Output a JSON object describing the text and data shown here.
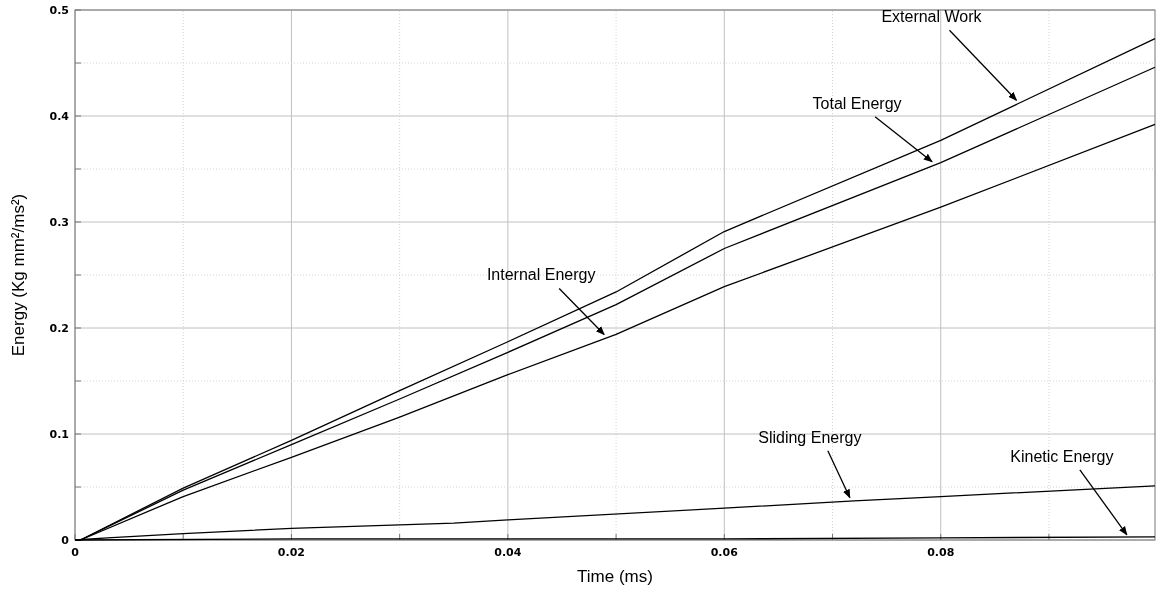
{
  "chart_data": {
    "type": "line",
    "xlabel": "Time (ms)",
    "ylabel": "Energy (Kg mm²/ms²)",
    "xlim": [
      0,
      0.0998
    ],
    "ylim": [
      0,
      0.5
    ],
    "xticks": [
      0,
      {
        "value": 0.01,
        "label": null
      },
      0.02,
      {
        "value": 0.03,
        "label": null
      },
      0.04,
      {
        "value": 0.05,
        "label": null
      },
      0.06,
      {
        "value": 0.07,
        "label": null
      },
      0.08,
      {
        "value": 0.09,
        "label": null
      }
    ],
    "yticks": [
      0,
      {
        "value": 0.05,
        "label": null
      },
      0.1,
      {
        "value": 0.15,
        "label": null
      },
      0.2,
      {
        "value": 0.25,
        "label": null
      },
      0.3,
      {
        "value": 0.35,
        "label": null
      },
      0.4,
      {
        "value": 0.45,
        "label": null
      },
      0.5
    ],
    "grid": true,
    "marker": "none",
    "line_style": "solid",
    "series": [
      {
        "color": "#000000",
        "x": [
          0,
          0.0005,
          0.01,
          0.02,
          0.03,
          0.04,
          0.05,
          0.06,
          0.08,
          0.0998
        ],
        "values": [
          0,
          0,
          0.049,
          0.094,
          0.141,
          0.187,
          0.234,
          0.291,
          0.377,
          0.473
        ]
      },
      {
        "color": "#000000",
        "x": [
          0,
          0.0005,
          0.01,
          0.02,
          0.03,
          0.04,
          0.05,
          0.06,
          0.08,
          0.0998
        ],
        "values": [
          0,
          0,
          0.047,
          0.09,
          0.133,
          0.177,
          0.222,
          0.275,
          0.356,
          0.446
        ]
      },
      {
        "color": "#000000",
        "x": [
          0,
          0.0005,
          0.01,
          0.02,
          0.03,
          0.04,
          0.05,
          0.06,
          0.08,
          0.0998
        ],
        "values": [
          0,
          0,
          0.041,
          0.078,
          0.116,
          0.156,
          0.194,
          0.239,
          0.314,
          0.392
        ]
      },
      {
        "color": "#000000",
        "x": [
          0,
          0.003,
          0.01,
          0.02,
          0.035,
          0.04,
          0.06,
          0.072,
          0.08,
          0.0998
        ],
        "values": [
          0,
          0.002,
          0.006,
          0.011,
          0.016,
          0.019,
          0.03,
          0.037,
          0.041,
          0.051
        ]
      },
      {
        "color": "#000000",
        "x": [
          0,
          0.02,
          0.06,
          0.08,
          0.0998
        ],
        "values": [
          0,
          0.001,
          0.001,
          0.002,
          0.003
        ]
      }
    ],
    "annotations": [
      {
        "text": "External Work",
        "x": 0.087,
        "y": 0.413
      },
      {
        "text": "Total Energy",
        "x": 0.0792,
        "y": 0.355
      },
      {
        "text": "Internal Energy",
        "x": 0.0489,
        "y": 0.192
      },
      {
        "text": "Sliding Energy",
        "x": 0.0716,
        "y": 0.038
      },
      {
        "text": "Kinetic Energy",
        "x": 0.0972,
        "y": 0.003
      }
    ]
  }
}
